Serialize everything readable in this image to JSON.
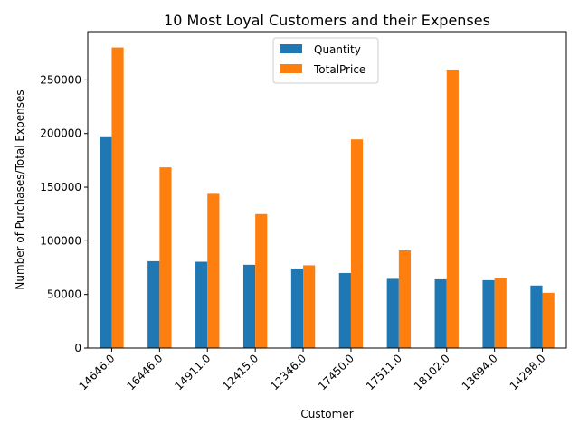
{
  "chart_data": {
    "type": "bar",
    "title": "10 Most Loyal Customers and their Expenses",
    "xlabel": "Customer",
    "ylabel": "Number of Purchases/Total Expenses",
    "categories": [
      "14646.0",
      "16446.0",
      "14911.0",
      "12415.0",
      "12346.0",
      "17450.0",
      "17511.0",
      "18102.0",
      "13694.0",
      "14298.0"
    ],
    "series": [
      {
        "name": "Quantity",
        "color": "#1f77b4",
        "values": [
          197420,
          80997,
          80490,
          77670,
          74215,
          69993,
          64549,
          64124,
          63312,
          58343
        ]
      },
      {
        "name": "TotalPrice",
        "color": "#ff7f0e",
        "values": [
          280206,
          168472,
          143825,
          124914,
          77183,
          194551,
          91062,
          259657,
          65039,
          51527
        ]
      }
    ],
    "ylim": [
      0,
      295000
    ],
    "yticks": [
      0,
      50000,
      100000,
      150000,
      200000,
      250000
    ],
    "grid": false,
    "legend_position": "top-center"
  }
}
